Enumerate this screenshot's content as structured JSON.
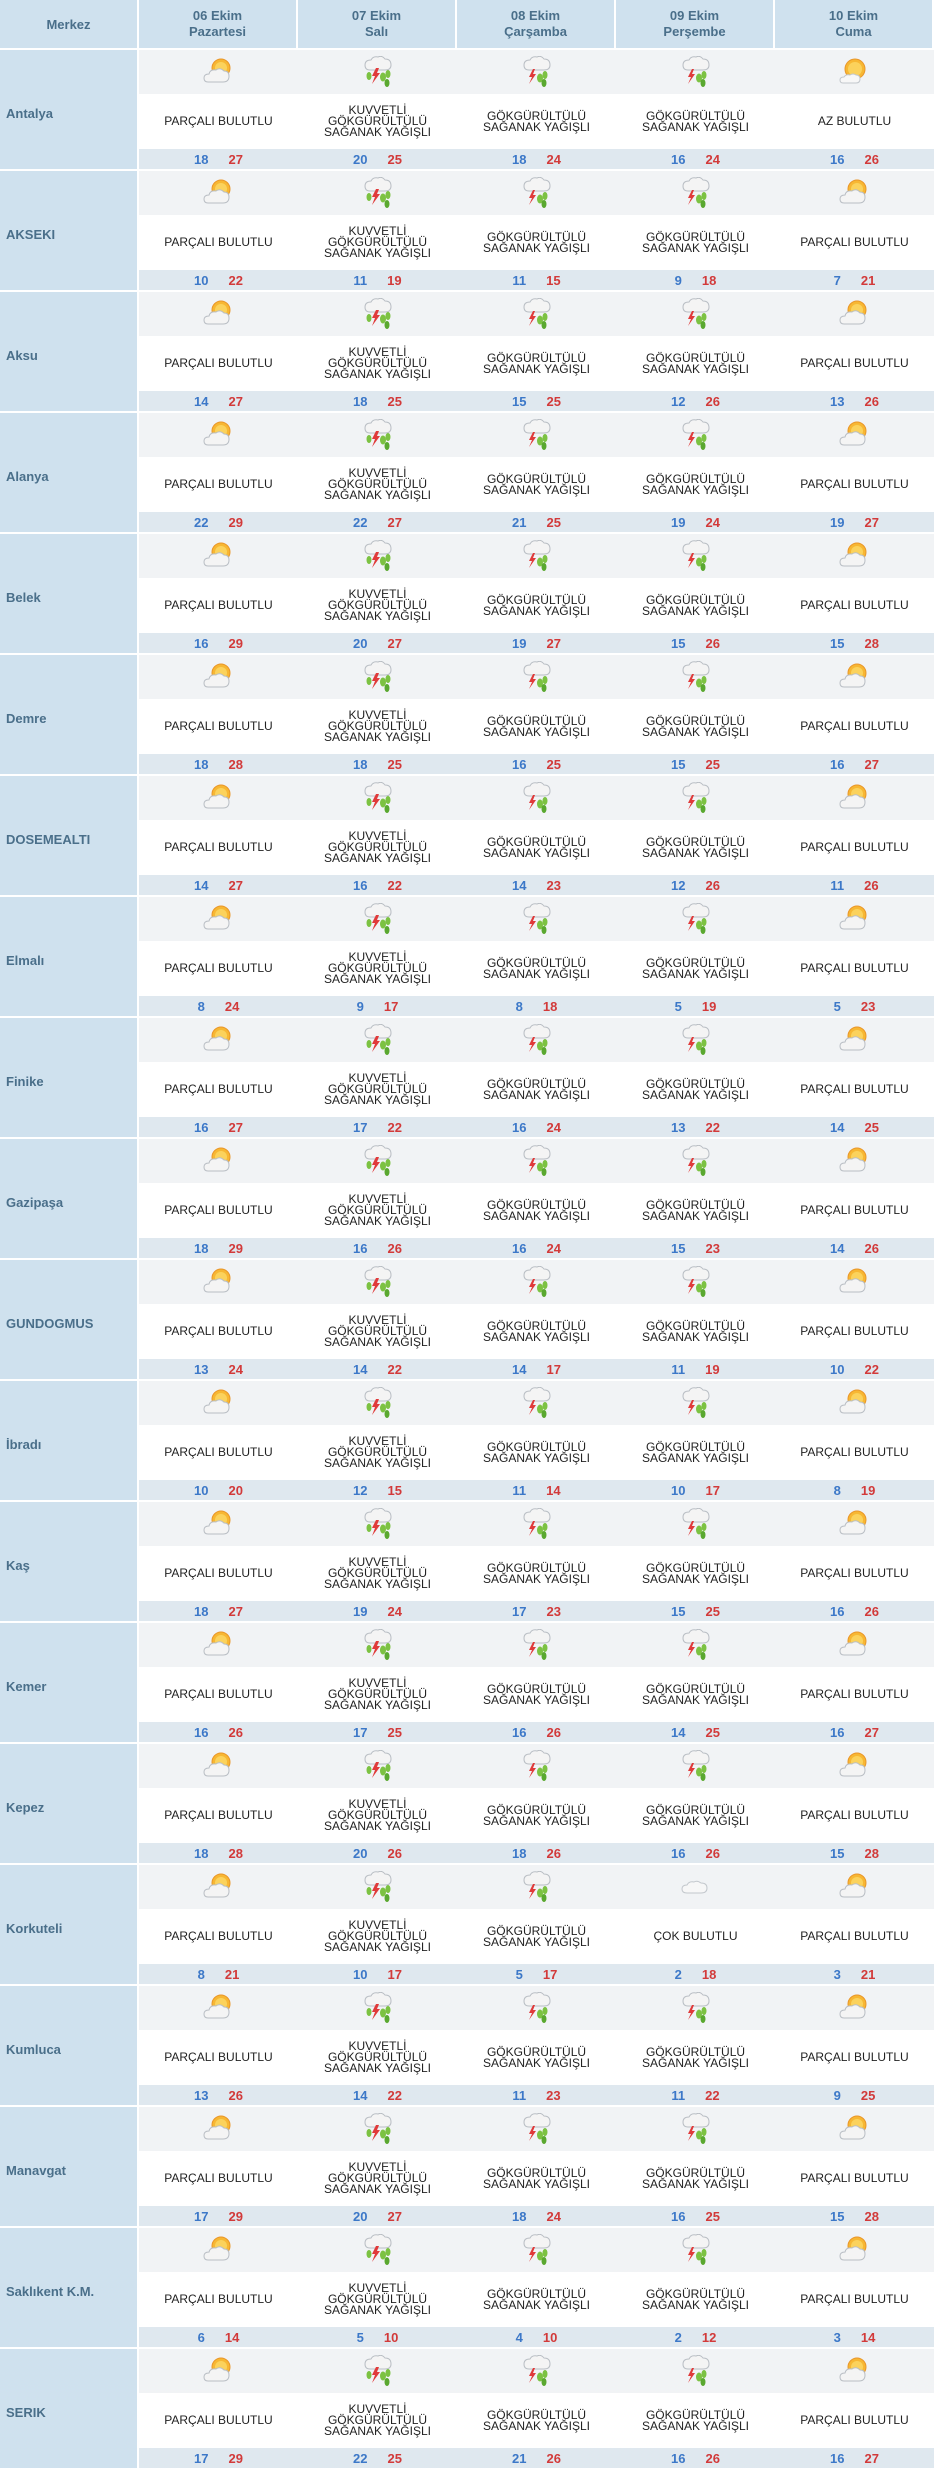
{
  "header": {
    "merkez": "Merkez",
    "days": [
      {
        "date": "06 Ekim",
        "name": "Pazartesi"
      },
      {
        "date": "07 Ekim",
        "name": "Salı"
      },
      {
        "date": "08 Ekim",
        "name": "Çarşamba"
      },
      {
        "date": "09 Ekim",
        "name": "Perşembe"
      },
      {
        "date": "10 Ekim",
        "name": "Cuma"
      }
    ]
  },
  "conditions": {
    "PB": {
      "label": "PARÇALI BULUTLU",
      "icon": "partly-cloudy-icon"
    },
    "AB": {
      "label": "AZ BULUTLU",
      "icon": "mostly-sunny-icon"
    },
    "GS": {
      "label": "GÖKGÜRÜLTÜLÜ SAĞANAK YAĞIŞLI",
      "icon": "thunderstorm-icon"
    },
    "KG": {
      "label": "KUVVETLİ GÖKGÜRÜLTÜLÜ SAĞANAK YAĞIŞLI",
      "icon": "heavy-thunderstorm-icon"
    },
    "CB": {
      "label": "ÇOK BULUTLU",
      "icon": "cloudy-icon"
    }
  },
  "colors": {
    "min": "#3c78c8",
    "max": "#d23a3a",
    "header_bg": "#cfe1ee"
  },
  "rows": [
    {
      "city": "Antalya",
      "days": [
        {
          "c": "PB",
          "min": 18,
          "max": 27
        },
        {
          "c": "KG",
          "min": 20,
          "max": 25
        },
        {
          "c": "GS",
          "min": 18,
          "max": 24
        },
        {
          "c": "GS",
          "min": 16,
          "max": 24
        },
        {
          "c": "AB",
          "min": 16,
          "max": 26
        }
      ]
    },
    {
      "city": "AKSEKI",
      "days": [
        {
          "c": "PB",
          "min": 10,
          "max": 22
        },
        {
          "c": "KG",
          "min": 11,
          "max": 19
        },
        {
          "c": "GS",
          "min": 11,
          "max": 15
        },
        {
          "c": "GS",
          "min": 9,
          "max": 18
        },
        {
          "c": "PB",
          "min": 7,
          "max": 21
        }
      ]
    },
    {
      "city": "Aksu",
      "days": [
        {
          "c": "PB",
          "min": 14,
          "max": 27
        },
        {
          "c": "KG",
          "min": 18,
          "max": 25
        },
        {
          "c": "GS",
          "min": 15,
          "max": 25
        },
        {
          "c": "GS",
          "min": 12,
          "max": 26
        },
        {
          "c": "PB",
          "min": 13,
          "max": 26
        }
      ]
    },
    {
      "city": "Alanya",
      "days": [
        {
          "c": "PB",
          "min": 22,
          "max": 29
        },
        {
          "c": "KG",
          "min": 22,
          "max": 27
        },
        {
          "c": "GS",
          "min": 21,
          "max": 25
        },
        {
          "c": "GS",
          "min": 19,
          "max": 24
        },
        {
          "c": "PB",
          "min": 19,
          "max": 27
        }
      ]
    },
    {
      "city": "Belek",
      "days": [
        {
          "c": "PB",
          "min": 16,
          "max": 29
        },
        {
          "c": "KG",
          "min": 20,
          "max": 27
        },
        {
          "c": "GS",
          "min": 19,
          "max": 27
        },
        {
          "c": "GS",
          "min": 15,
          "max": 26
        },
        {
          "c": "PB",
          "min": 15,
          "max": 28
        }
      ]
    },
    {
      "city": "Demre",
      "days": [
        {
          "c": "PB",
          "min": 18,
          "max": 28
        },
        {
          "c": "KG",
          "min": 18,
          "max": 25
        },
        {
          "c": "GS",
          "min": 16,
          "max": 25
        },
        {
          "c": "GS",
          "min": 15,
          "max": 25
        },
        {
          "c": "PB",
          "min": 16,
          "max": 27
        }
      ]
    },
    {
      "city": "DOSEMEALTI",
      "days": [
        {
          "c": "PB",
          "min": 14,
          "max": 27
        },
        {
          "c": "KG",
          "min": 16,
          "max": 22
        },
        {
          "c": "GS",
          "min": 14,
          "max": 23
        },
        {
          "c": "GS",
          "min": 12,
          "max": 26
        },
        {
          "c": "PB",
          "min": 11,
          "max": 26
        }
      ]
    },
    {
      "city": "Elmalı",
      "days": [
        {
          "c": "PB",
          "min": 8,
          "max": 24
        },
        {
          "c": "KG",
          "min": 9,
          "max": 17
        },
        {
          "c": "GS",
          "min": 8,
          "max": 18
        },
        {
          "c": "GS",
          "min": 5,
          "max": 19
        },
        {
          "c": "PB",
          "min": 5,
          "max": 23
        }
      ]
    },
    {
      "city": "Finike",
      "days": [
        {
          "c": "PB",
          "min": 16,
          "max": 27
        },
        {
          "c": "KG",
          "min": 17,
          "max": 22
        },
        {
          "c": "GS",
          "min": 16,
          "max": 24
        },
        {
          "c": "GS",
          "min": 13,
          "max": 22
        },
        {
          "c": "PB",
          "min": 14,
          "max": 25
        }
      ]
    },
    {
      "city": "Gazipaşa",
      "days": [
        {
          "c": "PB",
          "min": 18,
          "max": 29
        },
        {
          "c": "KG",
          "min": 16,
          "max": 26
        },
        {
          "c": "GS",
          "min": 16,
          "max": 24
        },
        {
          "c": "GS",
          "min": 15,
          "max": 23
        },
        {
          "c": "PB",
          "min": 14,
          "max": 26
        }
      ]
    },
    {
      "city": "GUNDOGMUS",
      "days": [
        {
          "c": "PB",
          "min": 13,
          "max": 24
        },
        {
          "c": "KG",
          "min": 14,
          "max": 22
        },
        {
          "c": "GS",
          "min": 14,
          "max": 17
        },
        {
          "c": "GS",
          "min": 11,
          "max": 19
        },
        {
          "c": "PB",
          "min": 10,
          "max": 22
        }
      ]
    },
    {
      "city": "İbradı",
      "days": [
        {
          "c": "PB",
          "min": 10,
          "max": 20
        },
        {
          "c": "KG",
          "min": 12,
          "max": 15
        },
        {
          "c": "GS",
          "min": 11,
          "max": 14
        },
        {
          "c": "GS",
          "min": 10,
          "max": 17
        },
        {
          "c": "PB",
          "min": 8,
          "max": 19
        }
      ]
    },
    {
      "city": "Kaş",
      "days": [
        {
          "c": "PB",
          "min": 18,
          "max": 27
        },
        {
          "c": "KG",
          "min": 19,
          "max": 24
        },
        {
          "c": "GS",
          "min": 17,
          "max": 23
        },
        {
          "c": "GS",
          "min": 15,
          "max": 25
        },
        {
          "c": "PB",
          "min": 16,
          "max": 26
        }
      ]
    },
    {
      "city": "Kemer",
      "days": [
        {
          "c": "PB",
          "min": 16,
          "max": 26
        },
        {
          "c": "KG",
          "min": 17,
          "max": 25
        },
        {
          "c": "GS",
          "min": 16,
          "max": 26
        },
        {
          "c": "GS",
          "min": 14,
          "max": 25
        },
        {
          "c": "PB",
          "min": 16,
          "max": 27
        }
      ]
    },
    {
      "city": "Kepez",
      "days": [
        {
          "c": "PB",
          "min": 18,
          "max": 28
        },
        {
          "c": "KG",
          "min": 20,
          "max": 26
        },
        {
          "c": "GS",
          "min": 18,
          "max": 26
        },
        {
          "c": "GS",
          "min": 16,
          "max": 26
        },
        {
          "c": "PB",
          "min": 15,
          "max": 28
        }
      ]
    },
    {
      "city": "Korkuteli",
      "days": [
        {
          "c": "PB",
          "min": 8,
          "max": 21
        },
        {
          "c": "KG",
          "min": 10,
          "max": 17
        },
        {
          "c": "GS",
          "min": 5,
          "max": 17
        },
        {
          "c": "CB",
          "min": 2,
          "max": 18
        },
        {
          "c": "PB",
          "min": 3,
          "max": 21
        }
      ]
    },
    {
      "city": "Kumluca",
      "days": [
        {
          "c": "PB",
          "min": 13,
          "max": 26
        },
        {
          "c": "KG",
          "min": 14,
          "max": 22
        },
        {
          "c": "GS",
          "min": 11,
          "max": 23
        },
        {
          "c": "GS",
          "min": 11,
          "max": 22
        },
        {
          "c": "PB",
          "min": 9,
          "max": 25
        }
      ]
    },
    {
      "city": "Manavgat",
      "days": [
        {
          "c": "PB",
          "min": 17,
          "max": 29
        },
        {
          "c": "KG",
          "min": 20,
          "max": 27
        },
        {
          "c": "GS",
          "min": 18,
          "max": 24
        },
        {
          "c": "GS",
          "min": 16,
          "max": 25
        },
        {
          "c": "PB",
          "min": 15,
          "max": 28
        }
      ]
    },
    {
      "city": "Saklıkent K.M.",
      "days": [
        {
          "c": "PB",
          "min": 6,
          "max": 14
        },
        {
          "c": "KG",
          "min": 5,
          "max": 10
        },
        {
          "c": "GS",
          "min": 4,
          "max": 10
        },
        {
          "c": "GS",
          "min": 2,
          "max": 12
        },
        {
          "c": "PB",
          "min": 3,
          "max": 14
        }
      ]
    },
    {
      "city": "SERIK",
      "days": [
        {
          "c": "PB",
          "min": 17,
          "max": 29
        },
        {
          "c": "KG",
          "min": 22,
          "max": 25
        },
        {
          "c": "GS",
          "min": 21,
          "max": 26
        },
        {
          "c": "GS",
          "min": 16,
          "max": 26
        },
        {
          "c": "PB",
          "min": 16,
          "max": 27
        }
      ]
    }
  ]
}
